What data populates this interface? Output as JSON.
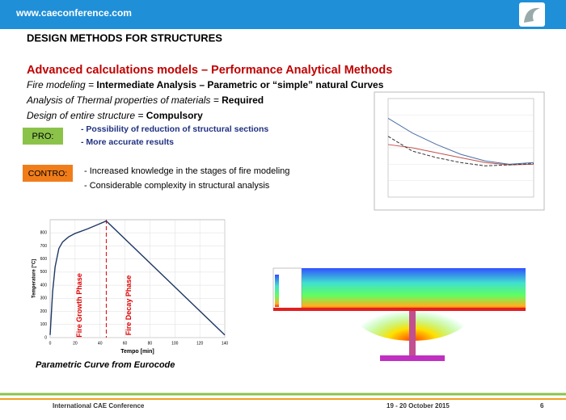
{
  "header": {
    "url": "www.caeconference.com"
  },
  "title": "DESIGN METHODS FOR STRUCTURES",
  "subtitle": "Advanced calculations models – Performance Analytical Methods",
  "lines": [
    [
      "Fire modeling = ",
      "Intermediate Analysis – Parametric or “simple” natural Curves"
    ],
    [
      "Analysis of Thermal properties of materials = ",
      "Required"
    ],
    [
      "Design of entire structure = ",
      "Compulsory"
    ]
  ],
  "pro": {
    "label": "PRO:",
    "items": [
      "- Possibility of reduction of structural sections",
      "- More accurate results"
    ]
  },
  "contro": {
    "label": "CONTRO:",
    "items": [
      "- Increased knowledge in the stages of fire modeling",
      "- Considerable complexity in structural analysis"
    ]
  },
  "caption": "Parametric Curve from Eurocode",
  "chart_data": [
    {
      "type": "line",
      "xlabel": "Tempo [min]",
      "ylabel": "Temperature [°C]",
      "x": [
        0,
        2,
        4,
        7,
        10,
        15,
        20,
        30,
        40,
        45,
        140
      ],
      "values": [
        20,
        350,
        540,
        680,
        730,
        770,
        795,
        830,
        870,
        890,
        20
      ],
      "color": "#1f3864",
      "xlim": [
        0,
        140
      ],
      "ylim": [
        0,
        900
      ],
      "xticks": [
        0,
        20,
        40,
        60,
        80,
        100,
        120,
        140
      ],
      "yticks": [
        0,
        100,
        200,
        300,
        400,
        500,
        600,
        700,
        800
      ],
      "grid": true,
      "phase_x": 45,
      "phase_labels": [
        "Fire Growth Phase",
        "Fire Decay Phase"
      ]
    },
    {
      "type": "line",
      "x": [
        0,
        200,
        400,
        600,
        800,
        1000,
        1200
      ],
      "xlim": [
        0,
        1200
      ],
      "ylim": [
        0,
        3
      ],
      "grid": true,
      "series": [
        {
          "color": "#4a6fa5",
          "values": [
            2.4,
            1.95,
            1.6,
            1.3,
            1.1,
            1.0,
            1.05
          ]
        },
        {
          "color": "#c0504d",
          "values": [
            1.6,
            1.5,
            1.35,
            1.2,
            1.05,
            0.98,
            1.0
          ]
        },
        {
          "color": "#333333",
          "dashed": true,
          "values": [
            1.85,
            1.4,
            1.2,
            1.05,
            0.95,
            0.98,
            1.02
          ]
        }
      ]
    }
  ],
  "footer": {
    "left": "International CAE Conference",
    "date": "19 - 20 October 2015",
    "page": "6"
  }
}
